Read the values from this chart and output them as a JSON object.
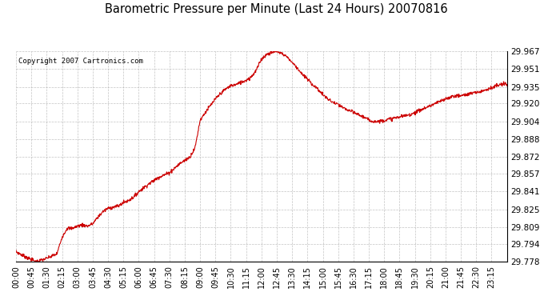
{
  "title": "Barometric Pressure per Minute (Last 24 Hours) 20070816",
  "copyright": "Copyright 2007 Cartronics.com",
  "line_color": "#cc0000",
  "background_color": "#ffffff",
  "plot_bg_color": "#ffffff",
  "grid_color": "#aaaaaa",
  "yticks": [
    29.778,
    29.794,
    29.809,
    29.825,
    29.841,
    29.857,
    29.872,
    29.888,
    29.904,
    29.92,
    29.935,
    29.951,
    29.967
  ],
  "xtick_labels": [
    "00:00",
    "00:45",
    "01:30",
    "02:15",
    "03:00",
    "03:45",
    "04:30",
    "05:15",
    "06:00",
    "06:45",
    "07:30",
    "08:15",
    "09:00",
    "09:45",
    "10:30",
    "11:15",
    "12:00",
    "12:45",
    "13:30",
    "14:15",
    "15:00",
    "15:45",
    "16:30",
    "17:15",
    "18:00",
    "18:45",
    "19:30",
    "20:15",
    "21:00",
    "21:45",
    "22:30",
    "23:15"
  ],
  "ymin": 29.778,
  "ymax": 29.967,
  "key_minutes": [
    0,
    30,
    60,
    90,
    120,
    135,
    150,
    165,
    180,
    195,
    210,
    225,
    240,
    255,
    270,
    285,
    300,
    315,
    330,
    345,
    360,
    390,
    420,
    450,
    480,
    495,
    510,
    525,
    540,
    555,
    570,
    585,
    600,
    615,
    630,
    645,
    660,
    675,
    690,
    705,
    720,
    735,
    750,
    765,
    780,
    795,
    810,
    825,
    840,
    855,
    870,
    885,
    900,
    915,
    930,
    945,
    960,
    975,
    990,
    1005,
    1020,
    1035,
    1050,
    1065,
    1080,
    1095,
    1110,
    1125,
    1140,
    1155,
    1170,
    1185,
    1200,
    1215,
    1230,
    1245,
    1260,
    1275,
    1290,
    1305,
    1320,
    1335,
    1350,
    1365,
    1380,
    1395,
    1410,
    1425,
    1440
  ],
  "key_values": [
    29.787,
    29.782,
    29.778,
    29.781,
    29.785,
    29.8,
    29.808,
    29.808,
    29.81,
    29.811,
    29.81,
    29.812,
    29.818,
    29.823,
    29.826,
    29.827,
    29.828,
    29.831,
    29.833,
    29.836,
    29.841,
    29.848,
    29.854,
    29.858,
    29.866,
    29.869,
    29.872,
    29.88,
    29.905,
    29.912,
    29.918,
    29.924,
    29.929,
    29.933,
    29.936,
    29.937,
    29.939,
    29.941,
    29.944,
    29.95,
    29.96,
    29.964,
    29.966,
    29.967,
    29.965,
    29.962,
    29.957,
    29.952,
    29.946,
    29.942,
    29.937,
    29.933,
    29.928,
    29.924,
    29.921,
    29.919,
    29.916,
    29.914,
    29.912,
    29.91,
    29.908,
    29.905,
    29.904,
    29.904,
    29.905,
    29.906,
    29.907,
    29.908,
    29.909,
    29.91,
    29.912,
    29.914,
    29.916,
    29.918,
    29.92,
    29.922,
    29.924,
    29.926,
    29.927,
    29.927,
    29.928,
    29.929,
    29.93,
    29.931,
    29.933,
    29.934,
    29.936,
    29.937,
    29.938
  ]
}
